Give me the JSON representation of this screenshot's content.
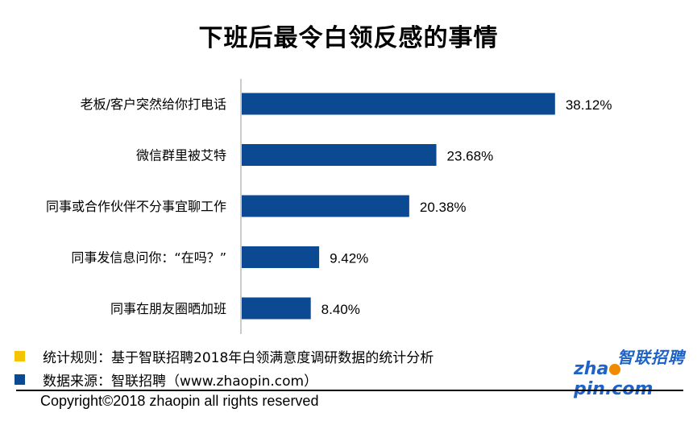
{
  "title": "下班后最令白领反感的事情",
  "chart_data": {
    "type": "bar",
    "orientation": "horizontal",
    "title": "下班后最令白领反感的事情",
    "categories": [
      "老板/客户突然给你打电话",
      "微信群里被艾特",
      "同事或合作伙伴不分事宜聊工作",
      "同事发信息问你：“在吗？”",
      "同事在朋友圈晒加班"
    ],
    "values": [
      38.12,
      23.68,
      20.38,
      9.42,
      8.4
    ],
    "value_labels": [
      "38.12%",
      "23.68%",
      "20.38%",
      "9.42%",
      "8.40%"
    ],
    "bar_color": "#0b4a93",
    "grid": false,
    "legend": "none"
  },
  "notes": [
    {
      "text": "统计规则：基于智联招聘2018年白领满意度调研数据的统计分析",
      "color": "#f5c400"
    },
    {
      "text": "数据来源：智联招聘（www.zhaopin.com）",
      "color": "#0b4a93"
    }
  ],
  "logo": {
    "cn": "智联招聘",
    "en_a": "zha",
    "en_b": "pin.com"
  },
  "copyright": "Copyright©2018 zhaopin all rights reserved"
}
